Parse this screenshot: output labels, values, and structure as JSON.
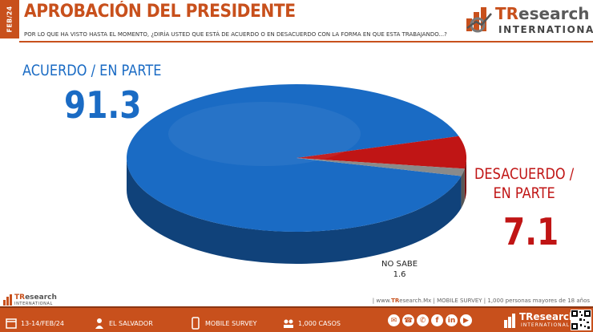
{
  "header": {
    "period_tab": "FEB/24",
    "title": "APROBACIÓN DEL PRESIDENTE",
    "question": "POR LO QUE HA VISTO HASTA EL MOMENTO, ¿DIRÍA USTED QUE ESTÁ DE ACUERDO O EN DESACUERDO CON LA FORMA EN QUE ESTA TRABAJANDO...?"
  },
  "logo": {
    "brand_tr": "TR",
    "brand_rest": "esearch",
    "sub": "INTERNATIONAL"
  },
  "chart_data": {
    "type": "pie",
    "categories": [
      "ACUERDO / EN PARTE",
      "DESACUERDO / EN PARTE",
      "NO SABE"
    ],
    "values": [
      91.3,
      7.1,
      1.6
    ],
    "value_labels": [
      "91.3",
      "7.1",
      "1.6"
    ],
    "colors": [
      "#1a6bc4",
      "#c01515",
      "#8a8a8a"
    ]
  },
  "labels": {
    "acuerdo": "ACUERDO / EN PARTE",
    "acuerdo_value": "91.3",
    "desacuerdo_line1": "DESACUERDO /",
    "desacuerdo_line2": "EN PARTE",
    "desacuerdo_value": "7.1",
    "nosabe": "NO SABE",
    "nosabe_value": "1.6"
  },
  "footnote": {
    "prefix": "| www.",
    "brand": "TR",
    "rest": "esearch.Mx | MOBILE SURVEY | 1,000 personas mayores de 18 años"
  },
  "small_logo": {
    "brand_tr": "TR",
    "brand_rest": "esearch",
    "sub": "INTERNATIONAL"
  },
  "footer": {
    "date": "13-14/FEB/24",
    "location": "EL SALVADOR",
    "method": "MOBILE SURVEY",
    "cases": "1,000 CASOS",
    "social": [
      "✉",
      "☎",
      "✆",
      "f",
      "in",
      "▶"
    ],
    "logo_brand": "TResearch",
    "logo_sub": "INTERNATIONAL"
  }
}
